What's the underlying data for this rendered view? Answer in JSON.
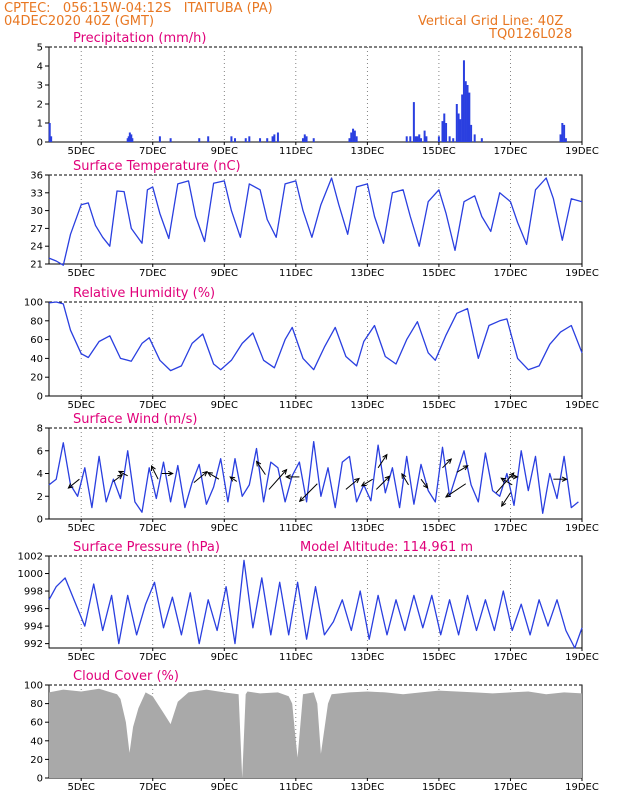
{
  "header": {
    "left_line1": "CPTEC:   056:15W-04:12S   ITAITUBA (PA)",
    "left_line2": "04DEC2020 40Z (GMT)",
    "right_line1": "Vertical Grid Line: 40Z",
    "right_line2": "TQ0126L028"
  },
  "colors": {
    "header": "#e87722",
    "title": "#e0007a",
    "series": "#2a3fe0",
    "cloud": "#a9a9a9"
  },
  "chart_data": [
    {
      "type": "bar",
      "title": "Precipitation (mm/h)",
      "ylim": [
        0,
        5
      ],
      "yticks": [
        0,
        1,
        2,
        3,
        4,
        5
      ],
      "x_tick_labels": [
        "5DEC",
        "7DEC",
        "9DEC",
        "11DEC",
        "13DEC",
        "15DEC",
        "17DEC",
        "19DEC"
      ],
      "x_tick_days": [
        5,
        7,
        9,
        11,
        13,
        15,
        17,
        19
      ],
      "x_range_days": [
        4.1,
        19
      ],
      "x": [
        4.12,
        4.16,
        6.3,
        6.33,
        6.36,
        6.4,
        6.43,
        7.2,
        7.5,
        8.3,
        8.55,
        9.2,
        9.3,
        9.6,
        9.7,
        10.0,
        10.2,
        10.35,
        10.4,
        10.5,
        11.2,
        11.25,
        11.3,
        11.5,
        12.5,
        12.55,
        12.6,
        12.65,
        12.7,
        14.1,
        14.2,
        14.3,
        14.35,
        14.4,
        14.45,
        14.5,
        14.6,
        14.65,
        15.0,
        15.1,
        15.15,
        15.2,
        15.3,
        15.4,
        15.5,
        15.55,
        15.6,
        15.65,
        15.7,
        15.75,
        15.8,
        15.85,
        15.9,
        16.0,
        16.2,
        18.4,
        18.45,
        18.5,
        18.55
      ],
      "values": [
        1.0,
        0.3,
        0.2,
        0.3,
        0.5,
        0.4,
        0.2,
        0.3,
        0.2,
        0.2,
        0.3,
        0.3,
        0.2,
        0.2,
        0.3,
        0.2,
        0.2,
        0.3,
        0.4,
        0.5,
        0.2,
        0.4,
        0.3,
        0.2,
        0.2,
        0.5,
        0.7,
        0.6,
        0.3,
        0.3,
        0.3,
        2.1,
        0.3,
        0.3,
        0.4,
        0.2,
        0.6,
        0.3,
        0.3,
        1.1,
        1.5,
        1.0,
        0.3,
        0.2,
        2.0,
        1.5,
        1.2,
        2.5,
        4.3,
        3.2,
        3.0,
        2.6,
        0.9,
        0.4,
        0.2,
        0.4,
        1.0,
        0.9,
        0.2
      ]
    },
    {
      "type": "line",
      "title": "Surface Temperature (nC)",
      "ylim": [
        21,
        36
      ],
      "yticks": [
        21,
        24,
        27,
        30,
        33,
        36
      ],
      "x_tick_labels": [
        "5DEC",
        "7DEC",
        "9DEC",
        "11DEC",
        "13DEC",
        "15DEC",
        "17DEC",
        "19DEC"
      ],
      "x_tick_days": [
        5,
        7,
        9,
        11,
        13,
        15,
        17,
        19
      ],
      "x_range_days": [
        4.1,
        19
      ],
      "x": [
        4.1,
        4.3,
        4.5,
        4.7,
        5.0,
        5.2,
        5.4,
        5.6,
        5.8,
        6.0,
        6.2,
        6.4,
        6.7,
        6.85,
        7.0,
        7.2,
        7.45,
        7.7,
        8.0,
        8.2,
        8.45,
        8.7,
        9.0,
        9.2,
        9.45,
        9.7,
        10.0,
        10.2,
        10.45,
        10.7,
        11.0,
        11.2,
        11.45,
        11.7,
        12.0,
        12.2,
        12.45,
        12.7,
        13.0,
        13.2,
        13.45,
        13.7,
        14.0,
        14.2,
        14.45,
        14.7,
        15.0,
        15.2,
        15.45,
        15.7,
        16.0,
        16.2,
        16.45,
        16.7,
        17.0,
        17.2,
        17.45,
        17.7,
        18.0,
        18.2,
        18.45,
        18.7,
        19.0
      ],
      "values": [
        22.0,
        21.5,
        20.8,
        26.0,
        31.0,
        31.3,
        27.5,
        25.5,
        24.0,
        33.3,
        33.2,
        27.0,
        24.5,
        33.5,
        34.0,
        29.5,
        25.3,
        34.5,
        35.0,
        29.0,
        24.8,
        34.6,
        35.0,
        30.0,
        25.5,
        34.5,
        33.5,
        28.5,
        25.5,
        34.5,
        35.0,
        30.0,
        25.5,
        31.0,
        35.5,
        31.0,
        26.0,
        34.0,
        34.5,
        29.0,
        24.5,
        33.0,
        33.5,
        29.0,
        24.0,
        31.5,
        33.5,
        29.5,
        23.3,
        31.5,
        32.5,
        29.0,
        26.5,
        33.0,
        31.5,
        28.0,
        24.3,
        33.5,
        35.5,
        32.0,
        25.0,
        32.0,
        31.5
      ]
    },
    {
      "type": "line",
      "title": "Relative Humidity (%)",
      "ylim": [
        0,
        100
      ],
      "yticks": [
        0,
        20,
        40,
        60,
        80,
        100
      ],
      "x_tick_labels": [
        "5DEC",
        "7DEC",
        "9DEC",
        "11DEC",
        "13DEC",
        "15DEC",
        "17DEC",
        "19DEC"
      ],
      "x_tick_days": [
        5,
        7,
        9,
        11,
        13,
        15,
        17,
        19
      ],
      "x_range_days": [
        4.1,
        19
      ],
      "x": [
        4.1,
        4.3,
        4.5,
        4.7,
        5.0,
        5.2,
        5.5,
        5.8,
        6.1,
        6.4,
        6.7,
        6.9,
        7.2,
        7.5,
        7.8,
        8.1,
        8.4,
        8.7,
        8.9,
        9.2,
        9.5,
        9.8,
        10.1,
        10.4,
        10.7,
        10.9,
        11.2,
        11.5,
        11.8,
        12.1,
        12.4,
        12.7,
        12.9,
        13.2,
        13.5,
        13.8,
        14.1,
        14.4,
        14.7,
        14.9,
        15.2,
        15.5,
        15.8,
        16.1,
        16.4,
        16.7,
        16.9,
        17.2,
        17.5,
        17.8,
        18.1,
        18.4,
        18.7,
        19.0
      ],
      "values": [
        99,
        100,
        98,
        70,
        45,
        41,
        58,
        64,
        40,
        37,
        56,
        62,
        38,
        27,
        32,
        56,
        66,
        34,
        28,
        38,
        56,
        67,
        38,
        30,
        60,
        73,
        40,
        28,
        52,
        73,
        42,
        32,
        58,
        75,
        42,
        34,
        60,
        79,
        46,
        38,
        65,
        88,
        93,
        40,
        75,
        80,
        82,
        40,
        28,
        32,
        55,
        68,
        75,
        46
      ]
    },
    {
      "type": "line",
      "title": "Surface Wind (m/s)",
      "ylim": [
        0,
        8
      ],
      "yticks": [
        0,
        2,
        4,
        6,
        8
      ],
      "x_tick_labels": [
        "5DEC",
        "7DEC",
        "9DEC",
        "11DEC",
        "13DEC",
        "15DEC",
        "17DEC",
        "19DEC"
      ],
      "x_tick_days": [
        5,
        7,
        9,
        11,
        13,
        15,
        17,
        19
      ],
      "x_range_days": [
        4.1,
        19
      ],
      "x": [
        4.1,
        4.3,
        4.5,
        4.7,
        4.9,
        5.1,
        5.3,
        5.5,
        5.7,
        5.9,
        6.1,
        6.3,
        6.5,
        6.7,
        6.9,
        7.1,
        7.3,
        7.5,
        7.7,
        7.9,
        8.1,
        8.3,
        8.5,
        8.7,
        8.9,
        9.1,
        9.3,
        9.5,
        9.7,
        9.9,
        10.1,
        10.3,
        10.5,
        10.7,
        10.9,
        11.1,
        11.3,
        11.5,
        11.7,
        11.9,
        12.1,
        12.3,
        12.5,
        12.7,
        12.9,
        13.1,
        13.3,
        13.5,
        13.7,
        13.9,
        14.1,
        14.3,
        14.5,
        14.7,
        14.9,
        15.1,
        15.3,
        15.5,
        15.7,
        15.9,
        16.1,
        16.3,
        16.5,
        16.7,
        16.9,
        17.1,
        17.3,
        17.5,
        17.7,
        17.9,
        18.1,
        18.3,
        18.5,
        18.7,
        18.9
      ],
      "values": [
        3.0,
        3.5,
        6.7,
        3.0,
        2.0,
        4.5,
        1.0,
        5.5,
        1.5,
        3.5,
        1.8,
        6.0,
        1.5,
        0.6,
        4.5,
        1.8,
        5.0,
        1.5,
        4.7,
        1.0,
        3.2,
        4.8,
        1.3,
        2.8,
        5.3,
        1.5,
        5.3,
        2.0,
        3.0,
        6.2,
        1.5,
        5.0,
        4.5,
        1.5,
        3.8,
        5.0,
        1.5,
        6.8,
        2.0,
        4.5,
        1.0,
        5.0,
        5.5,
        1.5,
        3.0,
        1.6,
        6.5,
        2.3,
        4.5,
        1.0,
        5.5,
        1.3,
        4.8,
        2.5,
        1.5,
        6.3,
        2.0,
        4.0,
        6.0,
        3.0,
        1.5,
        5.8,
        2.5,
        2.0,
        4.0,
        1.2,
        6.0,
        2.5,
        5.5,
        0.5,
        4.0,
        1.8,
        5.5,
        1.0,
        1.5
      ],
      "arrows": [
        {
          "x": 4.95,
          "y": 3.5,
          "u": -0.5,
          "v": -0.4
        },
        {
          "x": 5.9,
          "y": 3.3,
          "u": 0.4,
          "v": 0.3
        },
        {
          "x": 6.3,
          "y": 3.8,
          "u": -0.4,
          "v": 0.2
        },
        {
          "x": 7.15,
          "y": 3.5,
          "u": -0.3,
          "v": 0.6
        },
        {
          "x": 7.25,
          "y": 4.0,
          "u": 0.5,
          "v": 0.0
        },
        {
          "x": 8.15,
          "y": 3.2,
          "u": 0.6,
          "v": 0.5
        },
        {
          "x": 8.85,
          "y": 3.5,
          "u": -0.5,
          "v": 0.3
        },
        {
          "x": 9.35,
          "y": 3.3,
          "u": -0.3,
          "v": 0.2
        },
        {
          "x": 10.15,
          "y": 3.9,
          "u": -0.4,
          "v": 0.6
        },
        {
          "x": 10.25,
          "y": 2.6,
          "u": 0.8,
          "v": 0.9
        },
        {
          "x": 11.1,
          "y": 3.7,
          "u": -0.6,
          "v": 0.0
        },
        {
          "x": 11.6,
          "y": 3.1,
          "u": -0.8,
          "v": -0.8
        },
        {
          "x": 12.4,
          "y": 2.6,
          "u": 0.6,
          "v": 0.5
        },
        {
          "x": 13.15,
          "y": 3.5,
          "u": -0.5,
          "v": -0.3
        },
        {
          "x": 13.3,
          "y": 4.5,
          "u": 0.4,
          "v": 0.6
        },
        {
          "x": 13.25,
          "y": 2.6,
          "u": 0.6,
          "v": 0.6
        },
        {
          "x": 14.15,
          "y": 3.0,
          "u": -0.3,
          "v": 0.5
        },
        {
          "x": 14.5,
          "y": 3.5,
          "u": 0.3,
          "v": -0.4
        },
        {
          "x": 15.1,
          "y": 4.5,
          "u": 0.4,
          "v": 0.4
        },
        {
          "x": 15.5,
          "y": 4.1,
          "u": 0.5,
          "v": 0.3
        },
        {
          "x": 15.75,
          "y": 3.1,
          "u": -0.9,
          "v": -0.6
        },
        {
          "x": 16.6,
          "y": 2.3,
          "u": 0.8,
          "v": 0.9
        },
        {
          "x": 17.05,
          "y": 3.0,
          "u": -0.5,
          "v": 0.3
        },
        {
          "x": 16.95,
          "y": 3.7,
          "u": 0.4,
          "v": 0.0
        },
        {
          "x": 17.0,
          "y": 2.3,
          "u": -0.4,
          "v": -0.6
        },
        {
          "x": 18.2,
          "y": 3.5,
          "u": 0.6,
          "v": 0.0
        }
      ]
    },
    {
      "type": "line",
      "title": "Surface Pressure (hPa)",
      "annotation": "Model Altitude:  114.961  m",
      "ylim": [
        991.5,
        1002
      ],
      "yticks": [
        992,
        994,
        996,
        998,
        1000,
        1002
      ],
      "x_tick_labels": [
        "5DEC",
        "7DEC",
        "9DEC",
        "11DEC",
        "13DEC",
        "15DEC",
        "17DEC",
        "19DEC"
      ],
      "x_tick_days": [
        5,
        7,
        9,
        11,
        13,
        15,
        17,
        19
      ],
      "x_range_days": [
        4.1,
        19
      ],
      "x": [
        4.1,
        4.3,
        4.55,
        4.8,
        5.1,
        5.35,
        5.6,
        5.85,
        6.05,
        6.3,
        6.55,
        6.8,
        7.05,
        7.3,
        7.55,
        7.8,
        8.05,
        8.3,
        8.55,
        8.8,
        9.05,
        9.3,
        9.55,
        9.8,
        10.05,
        10.3,
        10.55,
        10.8,
        11.05,
        11.3,
        11.55,
        11.8,
        12.05,
        12.3,
        12.55,
        12.8,
        13.05,
        13.3,
        13.55,
        13.8,
        14.05,
        14.3,
        14.55,
        14.8,
        15.05,
        15.3,
        15.55,
        15.8,
        16.05,
        16.3,
        16.55,
        16.8,
        17.05,
        17.3,
        17.55,
        17.8,
        18.05,
        18.3,
        18.55,
        18.8,
        19.0
      ],
      "values": [
        997.0,
        998.5,
        999.5,
        997.0,
        994.0,
        998.8,
        993.5,
        997.5,
        992.0,
        997.5,
        993.0,
        996.5,
        999.0,
        993.8,
        997.3,
        993.0,
        997.8,
        992.0,
        997.0,
        993.5,
        998.5,
        992.0,
        1001.5,
        993.8,
        999.5,
        993.0,
        999.0,
        993.0,
        999.0,
        992.5,
        998.5,
        993.0,
        994.5,
        997.0,
        993.5,
        998.0,
        992.5,
        997.5,
        993.0,
        997.0,
        993.5,
        997.5,
        993.8,
        997.5,
        993.0,
        997.0,
        993.0,
        997.5,
        993.5,
        997.0,
        993.5,
        998.0,
        993.5,
        996.5,
        993.0,
        997.0,
        994.0,
        997.0,
        993.5,
        991.5,
        993.8
      ]
    },
    {
      "type": "area",
      "title": "Cloud Cover (%)",
      "ylim": [
        0,
        100
      ],
      "yticks": [
        0,
        20,
        40,
        60,
        80,
        100
      ],
      "x_tick_labels": [
        "5DEC",
        "7DEC",
        "9DEC",
        "11DEC",
        "13DEC",
        "15DEC",
        "17DEC",
        "19DEC"
      ],
      "x_tick_days": [
        5,
        7,
        9,
        11,
        13,
        15,
        17,
        19
      ],
      "x_range_days": [
        4.1,
        19
      ],
      "x": [
        4.1,
        4.5,
        5.0,
        5.5,
        6.0,
        6.1,
        6.25,
        6.35,
        6.45,
        6.6,
        6.8,
        7.0,
        7.3,
        7.5,
        7.7,
        8.0,
        8.5,
        9.0,
        9.4,
        9.5,
        9.6,
        9.65,
        10.0,
        10.5,
        10.8,
        10.9,
        11.0,
        11.05,
        11.1,
        11.2,
        11.5,
        11.6,
        11.7,
        11.9,
        12.0,
        12.5,
        13.0,
        13.5,
        14.0,
        14.5,
        15.0,
        15.5,
        16.0,
        16.5,
        17.0,
        17.5,
        18.0,
        18.5,
        19.0
      ],
      "values": [
        92,
        95,
        93,
        96,
        90,
        85,
        60,
        27,
        55,
        75,
        92,
        88,
        70,
        58,
        82,
        92,
        95,
        92,
        90,
        0,
        90,
        93,
        91,
        92,
        88,
        80,
        40,
        22,
        45,
        90,
        92,
        80,
        26,
        80,
        90,
        92,
        93,
        92,
        90,
        92,
        94,
        93,
        92,
        91,
        92,
        93,
        90,
        92,
        91
      ]
    }
  ]
}
